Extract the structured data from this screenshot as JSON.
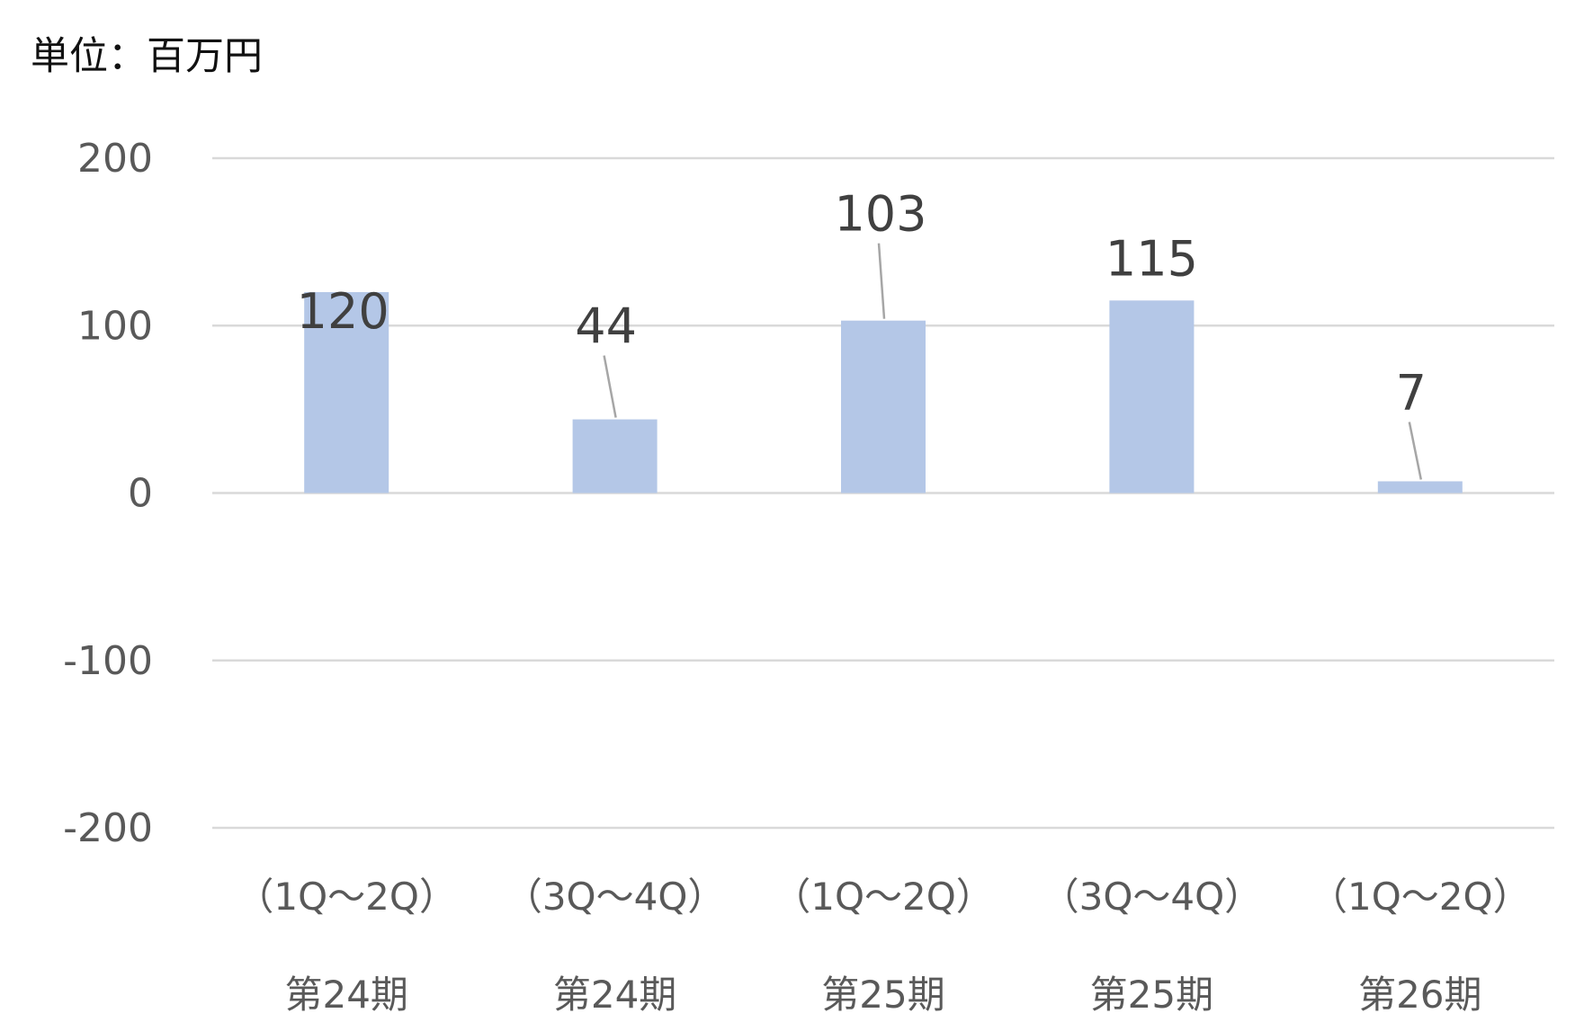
{
  "unit_label": "単位：百万円",
  "chart_data": {
    "type": "bar",
    "categories": [
      [
        "（1Q～2Q）",
        "第24期"
      ],
      [
        "（3Q～4Q）",
        "第24期"
      ],
      [
        "（1Q～2Q）",
        "第25期"
      ],
      [
        "（3Q～4Q）",
        "第25期"
      ],
      [
        "（1Q～2Q）",
        "第26期"
      ]
    ],
    "values": [
      120,
      44,
      103,
      115,
      7
    ],
    "data_labels": [
      "120",
      "44",
      "103",
      "115",
      "7"
    ],
    "title": "",
    "xlabel": "",
    "ylabel": "",
    "ylim": [
      -200,
      200
    ],
    "y_ticks": [
      200,
      100,
      0,
      -100,
      -200
    ],
    "y_tick_labels": [
      "200",
      "100",
      "0",
      "-100",
      "-200"
    ],
    "grid": true,
    "legend": "none",
    "colors": {
      "bar": "#b4c7e7",
      "grid": "#d9d9d9",
      "tick_text": "#595959",
      "label_text": "#404040",
      "leader_line": "#a6a6a6"
    }
  }
}
